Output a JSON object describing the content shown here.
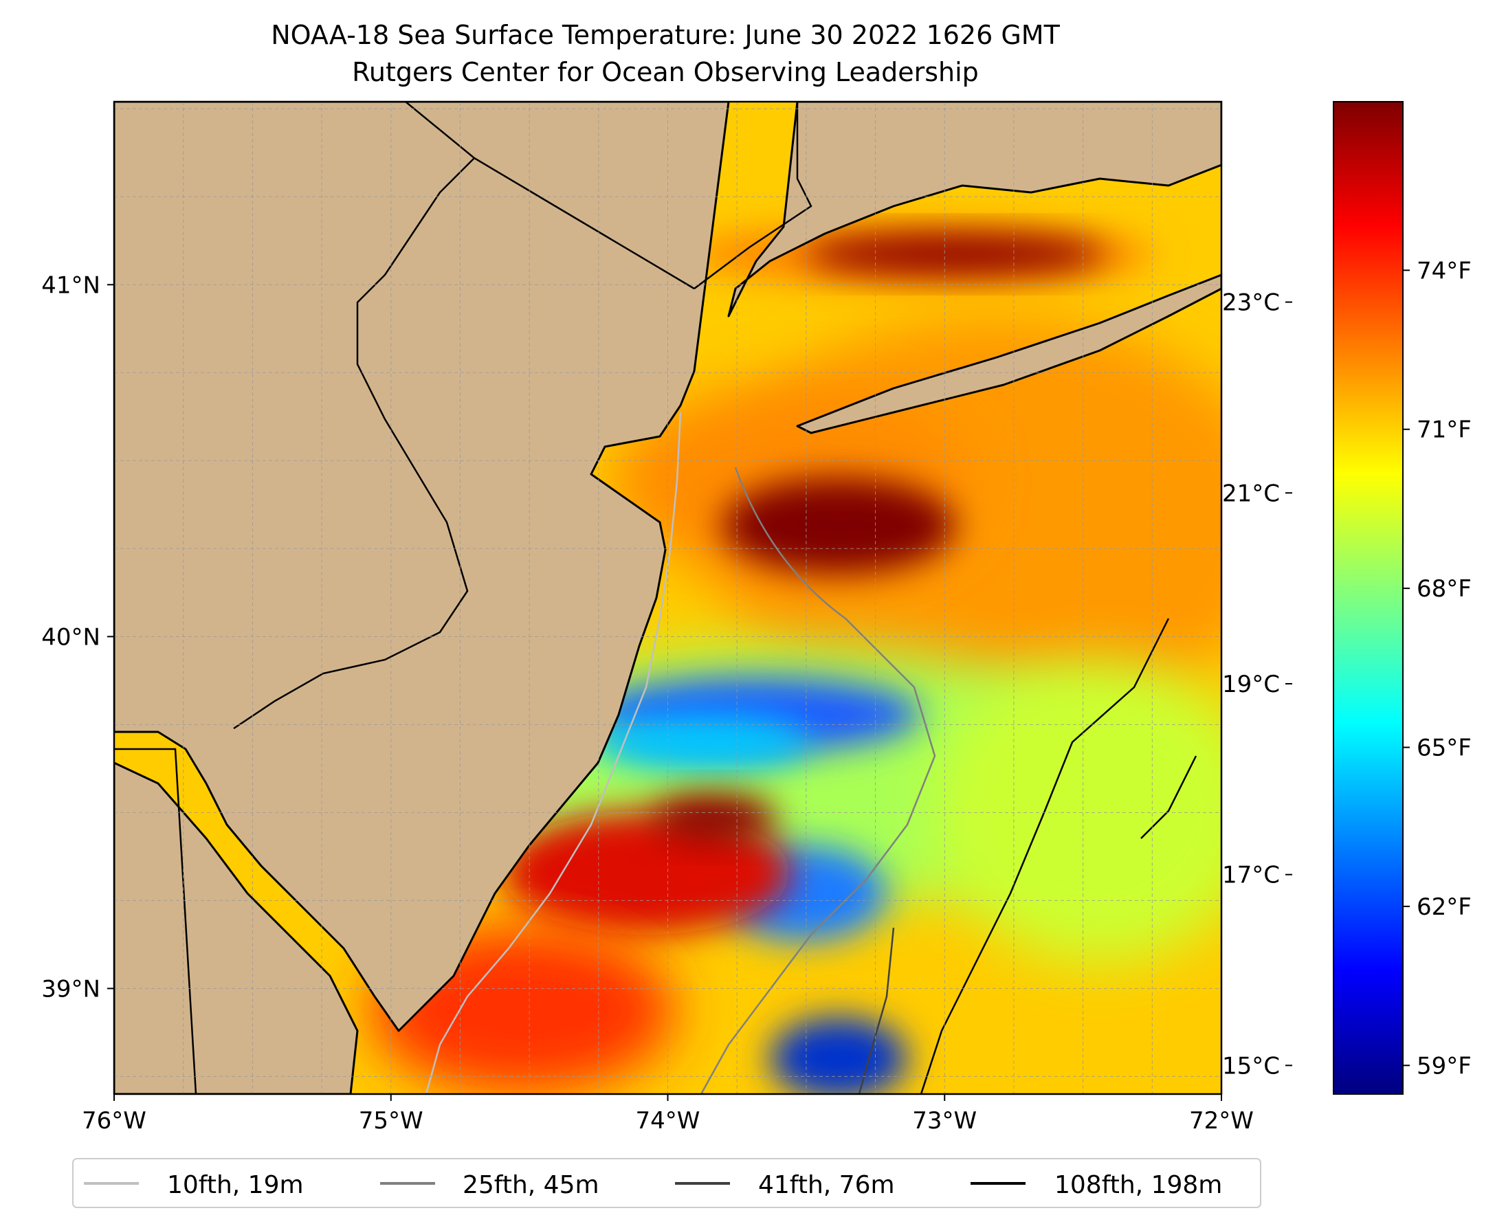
{
  "title": {
    "line1": "NOAA-18 Sea Surface Temperature: June 30 2022 1626 GMT",
    "line2": "Rutgers Center for Ocean Observing Leadership"
  },
  "map": {
    "lon_range": [
      -76,
      -72
    ],
    "lat_range": [
      38.7,
      41.52
    ],
    "land_color": "#d2b48c",
    "grid": true,
    "lon_ticks": [
      {
        "value": -76,
        "label": "76°W"
      },
      {
        "value": -75,
        "label": "75°W"
      },
      {
        "value": -74,
        "label": "74°W"
      },
      {
        "value": -73,
        "label": "73°W"
      },
      {
        "value": -72,
        "label": "72°W"
      }
    ],
    "lat_ticks": [
      {
        "value": 39,
        "label": "39°N"
      },
      {
        "value": 40,
        "label": "40°N"
      },
      {
        "value": 41,
        "label": "41°N"
      }
    ]
  },
  "colorbar": {
    "colormap": "jet",
    "colors": [
      "#00007f",
      "#0000ff",
      "#007fff",
      "#00ffff",
      "#7fff7f",
      "#ffff00",
      "#ff7f00",
      "#ff0000",
      "#7f0000"
    ],
    "celsius_range": [
      14.7,
      25.1
    ],
    "celsius_ticks": [
      {
        "value": 15,
        "label": "15°C"
      },
      {
        "value": 17,
        "label": "17°C"
      },
      {
        "value": 19,
        "label": "19°C"
      },
      {
        "value": 21,
        "label": "21°C"
      },
      {
        "value": 23,
        "label": "23°C"
      }
    ],
    "fahrenheit_ticks": [
      {
        "value": 59,
        "label": "59°F"
      },
      {
        "value": 62,
        "label": "62°F"
      },
      {
        "value": 65,
        "label": "65°F"
      },
      {
        "value": 68,
        "label": "68°F"
      },
      {
        "value": 71,
        "label": "71°F"
      },
      {
        "value": 74,
        "label": "74°F"
      }
    ]
  },
  "legend": {
    "location": "bottom",
    "items": [
      {
        "label": "10fth, 19m",
        "color": "#c0c0c0"
      },
      {
        "label": "25fth, 45m",
        "color": "#808080"
      },
      {
        "label": "41fth, 76m",
        "color": "#404040"
      },
      {
        "label": "108fth, 198m",
        "color": "#000000"
      }
    ]
  }
}
